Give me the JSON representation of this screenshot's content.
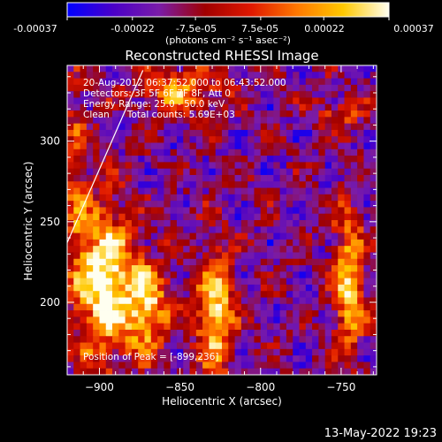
{
  "colorbar": {
    "ticks": [
      "-0.00037",
      "-0.00022",
      "-7.5e-05",
      "7.5e-05",
      "0.00022",
      "0.00037"
    ],
    "unit": "(photons cm⁻² s⁻¹ asec⁻²)",
    "min": -0.00037,
    "max": 0.00037,
    "stops": [
      "#0000ff",
      "#4a00c8",
      "#7a1ca8",
      "#a00000",
      "#e01800",
      "#ff7800",
      "#ffc800",
      "#fffff0"
    ]
  },
  "chart_data": {
    "type": "heatmap",
    "title": "Reconstructed RHESSI Image",
    "xlabel": "Heliocentric X (arcsec)",
    "ylabel": "Heliocentric Y (arcsec)",
    "xlim": [
      -920,
      -728
    ],
    "ylim": [
      155,
      347
    ],
    "xticks": [
      -900,
      -850,
      -800,
      -750
    ],
    "yticks": [
      200,
      250,
      300
    ],
    "grid": false,
    "annotations": [
      "20-Aug-2012 06:37:52.000 to 06:43:52.000",
      "Detectors: 3F 5F 6F 7F 8F, Att 0",
      "Energy Range: 25.0 - 50.0 keV",
      "Clean      Total counts: 5.69E+03"
    ],
    "peak_label": "Position of Peak = [-899,236]",
    "limb_line": [
      [
        -920,
        237
      ],
      [
        -873,
        344
      ]
    ]
  },
  "footer": {
    "timestamp": "13-May-2022 19:23"
  }
}
